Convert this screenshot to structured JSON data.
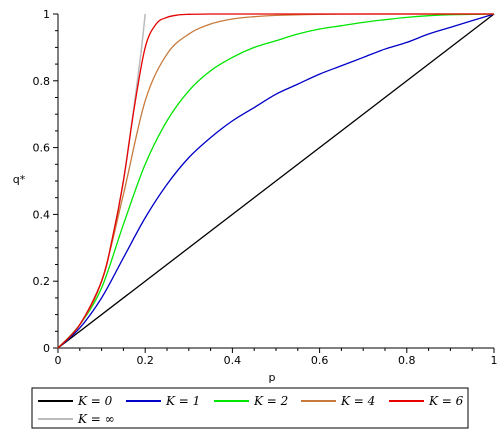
{
  "chart_data": {
    "type": "line",
    "xlabel": "p",
    "ylabel": "q*",
    "xlim": [
      0,
      1
    ],
    "ylim": [
      0,
      1
    ],
    "x_ticks": [
      0,
      0.2,
      0.4,
      0.6,
      0.8,
      1
    ],
    "y_ticks": [
      0,
      0.2,
      0.4,
      0.6,
      0.8,
      1
    ],
    "x_tick_labels": [
      "0",
      "0.2",
      "0.4",
      "0.6",
      "0.8",
      "1"
    ],
    "y_tick_labels": [
      "0",
      "0.2",
      "0.4",
      "0.6",
      "0.8",
      "1"
    ],
    "grid": false,
    "legend_position": "bottom",
    "series": [
      {
        "name": "K = 0",
        "color": "#000000",
        "x": [
          0,
          1
        ],
        "y": [
          0,
          1
        ]
      },
      {
        "name": "K = 1",
        "color": "#0000c8",
        "x": [
          0,
          0.05,
          0.1,
          0.15,
          0.2,
          0.25,
          0.3,
          0.35,
          0.4,
          0.45,
          0.5,
          0.55,
          0.6,
          0.65,
          0.7,
          0.75,
          0.8,
          0.85,
          0.9,
          0.95,
          1
        ],
        "y": [
          0,
          0.06,
          0.15,
          0.27,
          0.39,
          0.49,
          0.57,
          0.63,
          0.68,
          0.72,
          0.76,
          0.79,
          0.82,
          0.845,
          0.87,
          0.895,
          0.915,
          0.94,
          0.96,
          0.98,
          1
        ]
      },
      {
        "name": "K = 2",
        "color": "#00e600",
        "x": [
          0,
          0.05,
          0.1,
          0.15,
          0.2,
          0.25,
          0.3,
          0.35,
          0.4,
          0.45,
          0.5,
          0.55,
          0.6,
          0.65,
          0.7,
          0.75,
          0.8,
          0.85,
          0.9,
          0.95,
          1
        ],
        "y": [
          0,
          0.07,
          0.18,
          0.37,
          0.55,
          0.68,
          0.77,
          0.83,
          0.87,
          0.9,
          0.92,
          0.94,
          0.955,
          0.965,
          0.975,
          0.983,
          0.99,
          0.995,
          0.998,
          0.999,
          1
        ]
      },
      {
        "name": "K = 4",
        "color": "#c87a3c",
        "x": [
          0,
          0.05,
          0.1,
          0.15,
          0.2,
          0.25,
          0.3,
          0.35,
          0.4,
          0.45,
          0.5,
          0.6,
          0.7,
          0.8,
          0.9,
          1
        ],
        "y": [
          0,
          0.07,
          0.2,
          0.46,
          0.74,
          0.88,
          0.94,
          0.97,
          0.985,
          0.992,
          0.996,
          0.999,
          1,
          1,
          1,
          1
        ]
      },
      {
        "name": "K = 6",
        "color": "#e60000",
        "x": [
          0,
          0.05,
          0.1,
          0.125,
          0.15,
          0.175,
          0.2,
          0.225,
          0.25,
          0.275,
          0.3,
          0.35,
          0.4,
          0.5,
          0.6,
          0.8,
          1
        ],
        "y": [
          0,
          0.07,
          0.2,
          0.33,
          0.5,
          0.72,
          0.9,
          0.97,
          0.99,
          0.997,
          0.999,
          1,
          1,
          1,
          1,
          1,
          1
        ]
      },
      {
        "name": "K = ∞",
        "color": "#bbbbbb",
        "x": [
          0,
          0.05,
          0.1,
          0.125,
          0.15,
          0.175,
          0.19,
          0.2
        ],
        "y": [
          0,
          0.07,
          0.2,
          0.33,
          0.5,
          0.73,
          0.88,
          1
        ]
      }
    ]
  }
}
